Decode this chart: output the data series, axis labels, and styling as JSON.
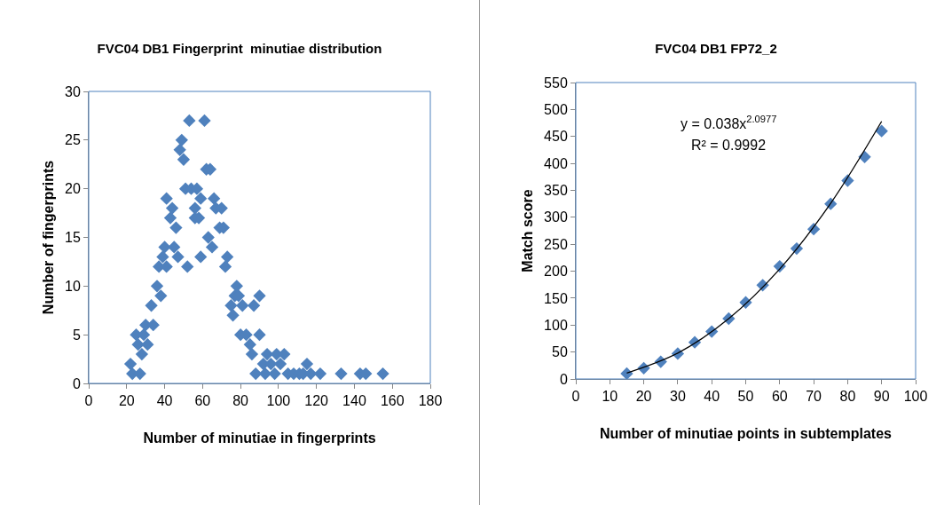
{
  "chart_data": [
    {
      "type": "scatter",
      "title": "FVC04 DB1 Fingerprint  minutiae distribution",
      "xlabel": "Number of minutiae in fingerprints",
      "ylabel": "Number of fingerprints",
      "marker": "diamond",
      "grid": false,
      "xlim": [
        0,
        180
      ],
      "xticks": [
        0,
        20,
        40,
        60,
        80,
        100,
        120,
        140,
        160,
        180
      ],
      "ylim": [
        0,
        30
      ],
      "yticks": [
        0,
        5,
        10,
        15,
        20,
        25,
        30
      ],
      "series": [
        {
          "color": "#4f81bd",
          "x": [
            22,
            23,
            27,
            25,
            26,
            28,
            29,
            30,
            31,
            33,
            34,
            36,
            37,
            38,
            39,
            41,
            40,
            41,
            43,
            44,
            45,
            46,
            47,
            48,
            49,
            50,
            51,
            52,
            53,
            54,
            56,
            56,
            57,
            58,
            59,
            59,
            61,
            62,
            63,
            64,
            65,
            66,
            67,
            69,
            70,
            71,
            72,
            73,
            75,
            76,
            77,
            78,
            79,
            80,
            81,
            83,
            85,
            86,
            87,
            88,
            90,
            90,
            92,
            93,
            94,
            96,
            98,
            99,
            101,
            103,
            105,
            108,
            111,
            113,
            115,
            117,
            122,
            133,
            143,
            146,
            155
          ],
          "values": [
            2,
            1,
            1,
            5,
            4,
            3,
            5,
            6,
            4,
            8,
            6,
            10,
            12,
            9,
            13,
            12,
            14,
            19,
            17,
            18,
            14,
            16,
            13,
            24,
            25,
            23,
            20,
            12,
            27,
            20,
            17,
            18,
            20,
            17,
            19,
            13,
            27,
            22,
            15,
            22,
            14,
            19,
            18,
            16,
            18,
            16,
            12,
            13,
            8,
            7,
            9,
            10,
            9,
            5,
            8,
            5,
            4,
            3,
            8,
            1,
            9,
            5,
            2,
            1,
            3,
            2,
            1,
            3,
            2,
            3,
            1,
            1,
            1,
            1,
            2,
            1,
            1,
            1,
            1,
            1,
            1
          ]
        }
      ]
    },
    {
      "type": "scatter",
      "title": "FVC04 DB1 FP72_2",
      "xlabel": "Number of minutiae points in subtemplates",
      "ylabel": "Match score",
      "marker": "diamond",
      "grid": false,
      "xlim": [
        0,
        100
      ],
      "xticks": [
        0,
        10,
        20,
        30,
        40,
        50,
        60,
        70,
        80,
        90,
        100
      ],
      "ylim": [
        0,
        550
      ],
      "yticks": [
        0,
        50,
        100,
        150,
        200,
        250,
        300,
        350,
        400,
        450,
        500,
        550
      ],
      "annotations": [
        "y = 0.038x$^{2.0977}$",
        "R² = 0.9992"
      ],
      "series": [
        {
          "color": "#4f81bd",
          "x": [
            15,
            20,
            25,
            30,
            35,
            40,
            45,
            50,
            55,
            60,
            65,
            70,
            75,
            80,
            85,
            90
          ],
          "values": [
            10,
            20,
            32,
            47,
            68,
            88,
            112,
            142,
            174,
            209,
            242,
            278,
            325,
            368,
            412,
            460
          ]
        },
        {
          "type": "line",
          "color": "#000000",
          "marker": "none",
          "x": [
            15,
            30,
            45,
            60,
            75,
            90
          ],
          "values": [
            11,
            48,
            112,
            204,
            326,
            478
          ]
        }
      ]
    }
  ]
}
